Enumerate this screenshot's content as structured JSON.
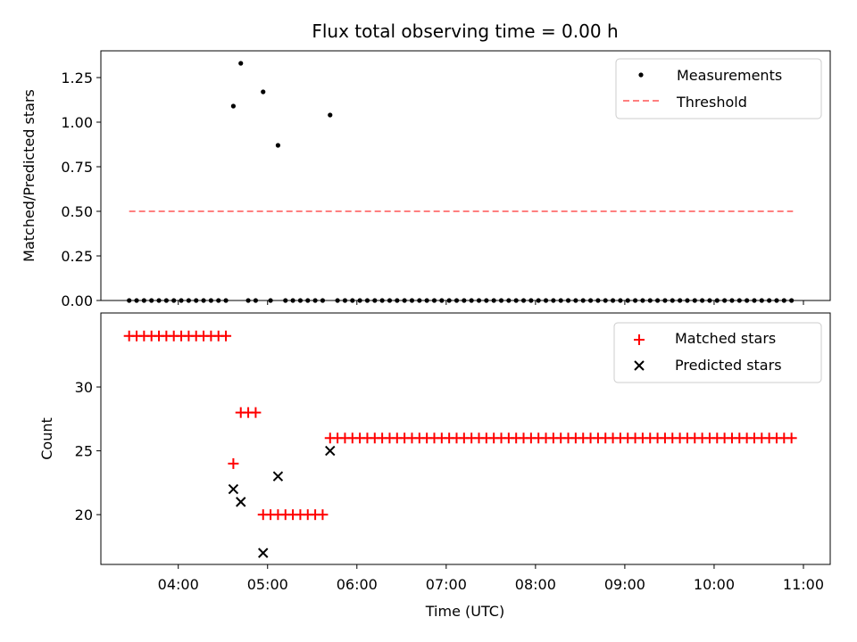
{
  "figure": {
    "title": "Flux total observing time = 0.00 h",
    "xlabel": "Time (UTC)",
    "xticks": [
      "04:00",
      "05:00",
      "06:00",
      "07:00",
      "08:00",
      "09:00",
      "10:00",
      "11:00"
    ],
    "colors": {
      "measurements": "#000000",
      "threshold": "#ff7f7f",
      "matched": "#ff0000",
      "predicted": "#000000"
    }
  },
  "chart_data": [
    {
      "type": "scatter",
      "ylabel": "Matched/Predicted stars",
      "ylim": [
        0,
        1.4
      ],
      "yticks": [
        "0.00",
        "0.25",
        "0.50",
        "0.75",
        "1.00",
        "1.25"
      ],
      "legend": {
        "placement": "top-right",
        "entries": [
          "Measurements",
          "Threshold"
        ]
      },
      "threshold": {
        "name": "Threshold",
        "y": 0.5,
        "x_range": [
          "03:27",
          "10:53"
        ]
      },
      "series": [
        {
          "name": "Measurements",
          "points": [
            [
              "03:27",
              0
            ],
            [
              "03:32",
              0
            ],
            [
              "03:37",
              0
            ],
            [
              "03:42",
              0
            ],
            [
              "03:47",
              0
            ],
            [
              "03:52",
              0
            ],
            [
              "03:57",
              0
            ],
            [
              "04:02",
              0
            ],
            [
              "04:07",
              0
            ],
            [
              "04:12",
              0
            ],
            [
              "04:17",
              0
            ],
            [
              "04:22",
              0
            ],
            [
              "04:27",
              0
            ],
            [
              "04:32",
              0
            ],
            [
              "04:37",
              1.09
            ],
            [
              "04:42",
              1.33
            ],
            [
              "04:47",
              0
            ],
            [
              "04:52",
              0
            ],
            [
              "04:57",
              1.17
            ],
            [
              "05:02",
              0
            ],
            [
              "05:07",
              0.87
            ],
            [
              "05:12",
              0
            ],
            [
              "05:17",
              0
            ],
            [
              "05:22",
              0
            ],
            [
              "05:27",
              0
            ],
            [
              "05:32",
              0
            ],
            [
              "05:37",
              0
            ],
            [
              "05:42",
              1.04
            ],
            [
              "05:47",
              0
            ],
            [
              "05:52",
              0
            ],
            [
              "05:57",
              0
            ],
            [
              "06:02",
              0
            ],
            [
              "06:07",
              0
            ],
            [
              "06:12",
              0
            ],
            [
              "06:17",
              0
            ],
            [
              "06:22",
              0
            ],
            [
              "06:27",
              0
            ],
            [
              "06:32",
              0
            ],
            [
              "06:37",
              0
            ],
            [
              "06:42",
              0
            ],
            [
              "06:47",
              0
            ],
            [
              "06:52",
              0
            ],
            [
              "06:57",
              0
            ],
            [
              "07:02",
              0
            ],
            [
              "07:07",
              0
            ],
            [
              "07:12",
              0
            ],
            [
              "07:17",
              0
            ],
            [
              "07:22",
              0
            ],
            [
              "07:27",
              0
            ],
            [
              "07:32",
              0
            ],
            [
              "07:37",
              0
            ],
            [
              "07:42",
              0
            ],
            [
              "07:47",
              0
            ],
            [
              "07:52",
              0
            ],
            [
              "07:57",
              0
            ],
            [
              "08:02",
              0
            ],
            [
              "08:07",
              0
            ],
            [
              "08:12",
              0
            ],
            [
              "08:17",
              0
            ],
            [
              "08:22",
              0
            ],
            [
              "08:27",
              0
            ],
            [
              "08:32",
              0
            ],
            [
              "08:37",
              0
            ],
            [
              "08:42",
              0
            ],
            [
              "08:47",
              0
            ],
            [
              "08:52",
              0
            ],
            [
              "08:57",
              0
            ],
            [
              "09:02",
              0
            ],
            [
              "09:07",
              0
            ],
            [
              "09:12",
              0
            ],
            [
              "09:17",
              0
            ],
            [
              "09:22",
              0
            ],
            [
              "09:27",
              0
            ],
            [
              "09:32",
              0
            ],
            [
              "09:37",
              0
            ],
            [
              "09:42",
              0
            ],
            [
              "09:47",
              0
            ],
            [
              "09:52",
              0
            ],
            [
              "09:57",
              0
            ],
            [
              "10:02",
              0
            ],
            [
              "10:07",
              0
            ],
            [
              "10:12",
              0
            ],
            [
              "10:17",
              0
            ],
            [
              "10:22",
              0
            ],
            [
              "10:27",
              0
            ],
            [
              "10:32",
              0
            ],
            [
              "10:37",
              0
            ],
            [
              "10:42",
              0
            ],
            [
              "10:47",
              0
            ],
            [
              "10:52",
              0
            ]
          ]
        }
      ]
    },
    {
      "type": "scatter",
      "ylabel": "Count",
      "ylim": [
        16.1,
        35.8
      ],
      "yticks": [
        "20",
        "25",
        "30"
      ],
      "legend": {
        "placement": "top-right",
        "entries": [
          "Matched stars",
          "Predicted stars"
        ]
      },
      "series": [
        {
          "name": "Matched stars",
          "points": [
            [
              "03:27",
              34
            ],
            [
              "03:32",
              34
            ],
            [
              "03:37",
              34
            ],
            [
              "03:42",
              34
            ],
            [
              "03:47",
              34
            ],
            [
              "03:52",
              34
            ],
            [
              "03:57",
              34
            ],
            [
              "04:02",
              34
            ],
            [
              "04:07",
              34
            ],
            [
              "04:12",
              34
            ],
            [
              "04:17",
              34
            ],
            [
              "04:22",
              34
            ],
            [
              "04:27",
              34
            ],
            [
              "04:32",
              34
            ],
            [
              "04:37",
              24
            ],
            [
              "04:42",
              28
            ],
            [
              "04:47",
              28
            ],
            [
              "04:52",
              28
            ],
            [
              "04:57",
              20
            ],
            [
              "05:02",
              20
            ],
            [
              "05:07",
              20
            ],
            [
              "05:12",
              20
            ],
            [
              "05:17",
              20
            ],
            [
              "05:22",
              20
            ],
            [
              "05:27",
              20
            ],
            [
              "05:32",
              20
            ],
            [
              "05:37",
              20
            ],
            [
              "05:42",
              26
            ],
            [
              "05:47",
              26
            ],
            [
              "05:52",
              26
            ],
            [
              "05:57",
              26
            ],
            [
              "06:02",
              26
            ],
            [
              "06:07",
              26
            ],
            [
              "06:12",
              26
            ],
            [
              "06:17",
              26
            ],
            [
              "06:22",
              26
            ],
            [
              "06:27",
              26
            ],
            [
              "06:32",
              26
            ],
            [
              "06:37",
              26
            ],
            [
              "06:42",
              26
            ],
            [
              "06:47",
              26
            ],
            [
              "06:52",
              26
            ],
            [
              "06:57",
              26
            ],
            [
              "07:02",
              26
            ],
            [
              "07:07",
              26
            ],
            [
              "07:12",
              26
            ],
            [
              "07:17",
              26
            ],
            [
              "07:22",
              26
            ],
            [
              "07:27",
              26
            ],
            [
              "07:32",
              26
            ],
            [
              "07:37",
              26
            ],
            [
              "07:42",
              26
            ],
            [
              "07:47",
              26
            ],
            [
              "07:52",
              26
            ],
            [
              "07:57",
              26
            ],
            [
              "08:02",
              26
            ],
            [
              "08:07",
              26
            ],
            [
              "08:12",
              26
            ],
            [
              "08:17",
              26
            ],
            [
              "08:22",
              26
            ],
            [
              "08:27",
              26
            ],
            [
              "08:32",
              26
            ],
            [
              "08:37",
              26
            ],
            [
              "08:42",
              26
            ],
            [
              "08:47",
              26
            ],
            [
              "08:52",
              26
            ],
            [
              "08:57",
              26
            ],
            [
              "09:02",
              26
            ],
            [
              "09:07",
              26
            ],
            [
              "09:12",
              26
            ],
            [
              "09:17",
              26
            ],
            [
              "09:22",
              26
            ],
            [
              "09:27",
              26
            ],
            [
              "09:32",
              26
            ],
            [
              "09:37",
              26
            ],
            [
              "09:42",
              26
            ],
            [
              "09:47",
              26
            ],
            [
              "09:52",
              26
            ],
            [
              "09:57",
              26
            ],
            [
              "10:02",
              26
            ],
            [
              "10:07",
              26
            ],
            [
              "10:12",
              26
            ],
            [
              "10:17",
              26
            ],
            [
              "10:22",
              26
            ],
            [
              "10:27",
              26
            ],
            [
              "10:32",
              26
            ],
            [
              "10:37",
              26
            ],
            [
              "10:42",
              26
            ],
            [
              "10:47",
              26
            ],
            [
              "10:52",
              26
            ]
          ]
        },
        {
          "name": "Predicted stars",
          "points": [
            [
              "04:37",
              22
            ],
            [
              "04:42",
              21
            ],
            [
              "04:57",
              17
            ],
            [
              "05:07",
              23
            ],
            [
              "05:42",
              25
            ]
          ]
        }
      ]
    }
  ]
}
